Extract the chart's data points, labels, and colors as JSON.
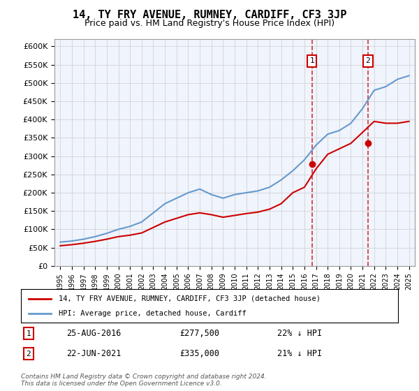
{
  "title": "14, TY FRY AVENUE, RUMNEY, CARDIFF, CF3 3JP",
  "subtitle": "Price paid vs. HM Land Registry's House Price Index (HPI)",
  "ylabel_ticks": [
    "£0",
    "£50K",
    "£100K",
    "£150K",
    "£200K",
    "£250K",
    "£300K",
    "£350K",
    "£400K",
    "£450K",
    "£500K",
    "£550K",
    "£600K"
  ],
  "ytick_values": [
    0,
    50000,
    100000,
    150000,
    200000,
    250000,
    300000,
    350000,
    400000,
    450000,
    500000,
    550000,
    600000
  ],
  "years": [
    1995,
    1996,
    1997,
    1998,
    1999,
    2000,
    2001,
    2002,
    2003,
    2004,
    2005,
    2006,
    2007,
    2008,
    2009,
    2010,
    2011,
    2012,
    2013,
    2014,
    2015,
    2016,
    2017,
    2018,
    2019,
    2020,
    2021,
    2022,
    2023,
    2024,
    2025
  ],
  "hpi_values": [
    65000,
    68000,
    73000,
    80000,
    89000,
    100000,
    108000,
    120000,
    145000,
    170000,
    185000,
    200000,
    210000,
    195000,
    185000,
    195000,
    200000,
    205000,
    215000,
    235000,
    260000,
    290000,
    330000,
    360000,
    370000,
    390000,
    430000,
    480000,
    490000,
    510000,
    520000
  ],
  "price_paid_values": [
    55000,
    58000,
    62000,
    67000,
    73000,
    80000,
    84000,
    90000,
    105000,
    120000,
    130000,
    140000,
    145000,
    140000,
    133000,
    138000,
    143000,
    147000,
    155000,
    170000,
    200000,
    215000,
    265000,
    305000,
    320000,
    335000,
    365000,
    395000,
    390000,
    390000,
    395000
  ],
  "sale1_year": 2016.65,
  "sale1_price": 277500,
  "sale1_label": "1",
  "sale1_date": "25-AUG-2016",
  "sale1_pct": "22% ↓ HPI",
  "sale2_year": 2021.47,
  "sale2_price": 335000,
  "sale2_label": "2",
  "sale2_date": "22-JUN-2021",
  "sale2_pct": "21% ↓ HPI",
  "hpi_color": "#6699cc",
  "price_color": "#cc0000",
  "dashed_color": "#cc0000",
  "bg_color": "#e8eef8",
  "plot_bg": "#f0f4fc",
  "grid_color": "#cccccc",
  "legend1": "14, TY FRY AVENUE, RUMNEY, CARDIFF, CF3 3JP (detached house)",
  "legend2": "HPI: Average price, detached house, Cardiff",
  "footnote": "Contains HM Land Registry data © Crown copyright and database right 2024.\nThis data is licensed under the Open Government Licence v3.0.",
  "xlim_start": 1995,
  "xlim_end": 2025.5
}
